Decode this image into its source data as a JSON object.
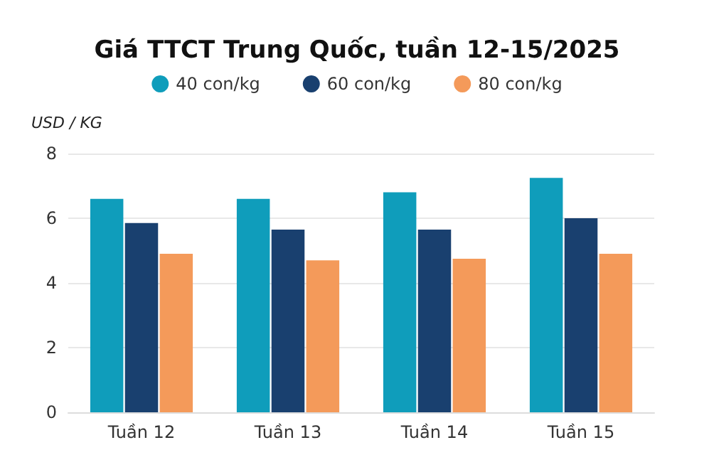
{
  "chart_data": {
    "type": "bar",
    "title": "Giá TTCT Trung Quốc, tuần 12-15/2025",
    "ylabel": "USD / KG",
    "categories": [
      "Tuần 12",
      "Tuần 13",
      "Tuần 14",
      "Tuần 15"
    ],
    "series": [
      {
        "name": "40 con/kg",
        "color": "#0f9dbb",
        "values": [
          6.6,
          6.6,
          6.8,
          7.25
        ]
      },
      {
        "name": "60 con/kg",
        "color": "#19406f",
        "values": [
          5.85,
          5.65,
          5.65,
          6.0
        ]
      },
      {
        "name": "80 con/kg",
        "color": "#f49a5a",
        "values": [
          4.9,
          4.7,
          4.75,
          4.9
        ]
      }
    ],
    "ylim": [
      0,
      8
    ],
    "yticks": [
      0,
      2,
      4,
      6,
      8
    ],
    "grid": "y",
    "legend": "top"
  }
}
